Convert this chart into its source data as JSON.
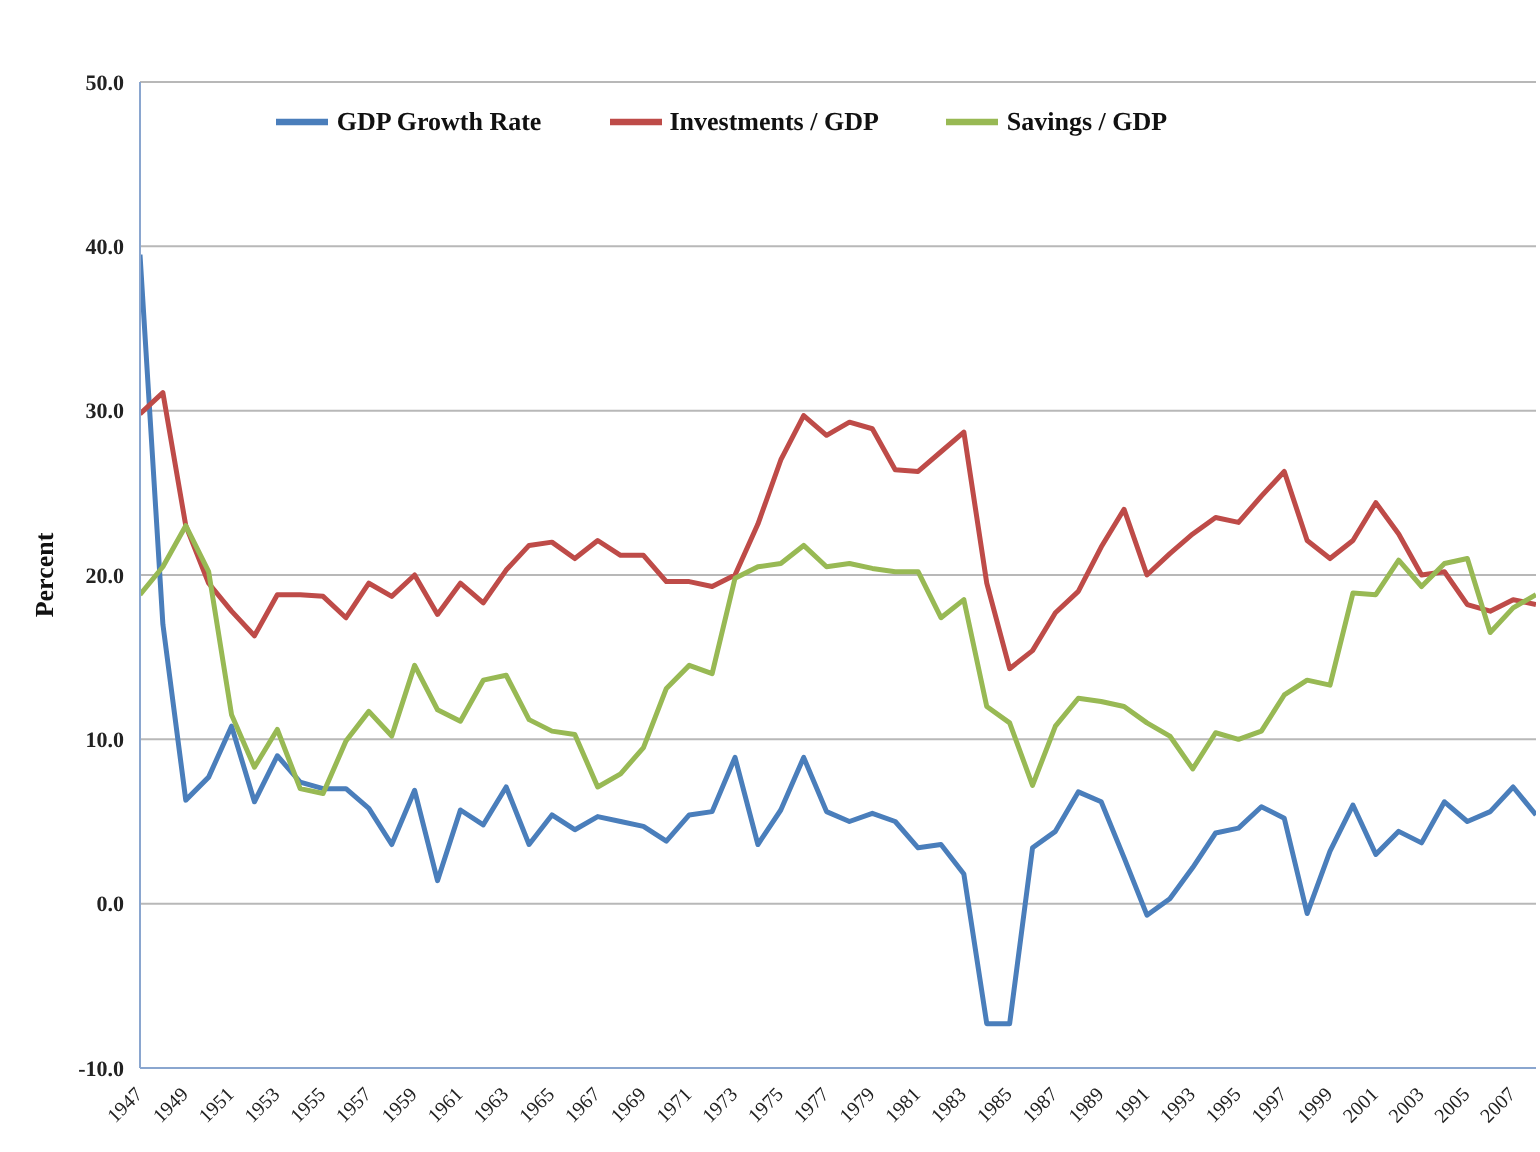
{
  "chart_data": {
    "type": "line",
    "ylabel": "Percent",
    "x": [
      1947,
      1948,
      1949,
      1950,
      1951,
      1952,
      1953,
      1954,
      1955,
      1956,
      1957,
      1958,
      1959,
      1960,
      1961,
      1962,
      1963,
      1964,
      1965,
      1966,
      1967,
      1968,
      1969,
      1970,
      1971,
      1972,
      1973,
      1974,
      1975,
      1976,
      1977,
      1978,
      1979,
      1980,
      1981,
      1982,
      1983,
      1984,
      1985,
      1986,
      1987,
      1988,
      1989,
      1990,
      1991,
      1992,
      1993,
      1994,
      1995,
      1996,
      1997,
      1998,
      1999,
      2000,
      2001,
      2002,
      2003,
      2004,
      2005,
      2006,
      2007,
      2008
    ],
    "series": [
      {
        "name": "GDP Growth Rate",
        "color": "#4a7ebb",
        "values": [
          39.5,
          17,
          6.3,
          7.7,
          10.8,
          6.2,
          9.0,
          7.4,
          7.0,
          7.0,
          5.8,
          3.6,
          6.9,
          1.4,
          5.7,
          4.8,
          7.1,
          3.6,
          5.4,
          4.5,
          5.3,
          5.0,
          4.7,
          3.8,
          5.4,
          5.6,
          8.9,
          3.6,
          5.7,
          8.9,
          5.6,
          5.0,
          5.5,
          5.0,
          3.4,
          3.6,
          1.8,
          -7.3,
          -7.3,
          3.4,
          4.4,
          6.8,
          6.2,
          2.8,
          -0.7,
          0.3,
          2.2,
          4.3,
          4.6,
          5.9,
          5.2,
          -0.6,
          3.2,
          6.0,
          3.0,
          4.4,
          3.7,
          6.2,
          5.0,
          5.6,
          7.1,
          5.4
        ]
      },
      {
        "name": "Investments / GDP",
        "color": "#be4b48",
        "values": [
          29.8,
          31.1,
          23.0,
          19.5,
          17.8,
          16.3,
          18.8,
          18.8,
          18.7,
          17.4,
          19.5,
          18.7,
          20.0,
          17.6,
          19.5,
          18.3,
          20.3,
          21.8,
          22.0,
          21.0,
          22.1,
          21.2,
          21.2,
          19.6,
          19.6,
          19.3,
          20.0,
          23.1,
          27.0,
          29.7,
          28.5,
          29.3,
          28.9,
          26.4,
          26.3,
          27.5,
          28.7,
          19.5,
          14.3,
          15.4,
          17.7,
          19.0,
          21.7,
          24.0,
          20.0,
          21.3,
          22.5,
          23.5,
          23.2,
          24.8,
          26.3,
          22.1,
          21.0,
          22.1,
          24.4,
          22.5,
          20.0,
          20.2,
          18.2,
          17.8,
          18.5,
          18.2
        ]
      },
      {
        "name": "Savings / GDP",
        "color": "#98b954",
        "values": [
          18.8,
          20.5,
          23.0,
          20.2,
          11.5,
          8.3,
          10.6,
          7.0,
          6.7,
          9.9,
          11.7,
          10.2,
          14.5,
          11.8,
          11.1,
          13.6,
          13.9,
          11.2,
          10.5,
          10.3,
          7.1,
          7.9,
          9.5,
          13.1,
          14.5,
          14.0,
          19.8,
          20.5,
          20.7,
          21.8,
          20.5,
          20.7,
          20.4,
          20.2,
          20.2,
          17.4,
          18.5,
          12.0,
          11.0,
          7.2,
          10.8,
          12.5,
          12.3,
          12.0,
          11.0,
          10.2,
          8.2,
          10.4,
          10.0,
          10.5,
          12.7,
          13.6,
          13.3,
          18.9,
          18.8,
          20.9,
          19.3,
          20.7,
          21.0,
          16.5,
          18.0,
          18.8
        ]
      }
    ],
    "xlim": [
      1947,
      2008
    ],
    "xticks": [
      1947,
      1949,
      1951,
      1953,
      1955,
      1957,
      1959,
      1961,
      1963,
      1965,
      1967,
      1969,
      1971,
      1973,
      1975,
      1977,
      1979,
      1981,
      1983,
      1985,
      1987,
      1989,
      1991,
      1993,
      1995,
      1997,
      1999,
      2001,
      2003,
      2005,
      2007
    ],
    "ylim": [
      -10,
      50
    ],
    "yticks": [
      {
        "value": -10,
        "label": "-10.0"
      },
      {
        "value": 0,
        "label": "0.0"
      },
      {
        "value": 10,
        "label": "10.0"
      },
      {
        "value": 20,
        "label": "20.0"
      },
      {
        "value": 30,
        "label": "30.0"
      },
      {
        "value": 40,
        "label": "40.0"
      },
      {
        "value": 50,
        "label": "50.0"
      }
    ],
    "grid": "y",
    "legend": "top",
    "marker": "none",
    "line_style": "solid"
  }
}
